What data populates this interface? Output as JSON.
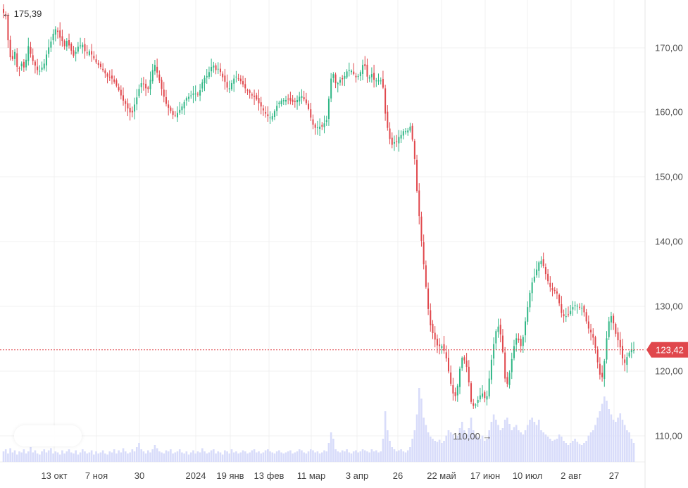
{
  "chart_data": {
    "type": "candlestick",
    "title": "",
    "x_ticks": [
      "13 окт",
      "7 ноя",
      "30",
      "2024",
      "19 янв",
      "13 фев",
      "11 мар",
      "3 апр",
      "26",
      "22 май",
      "17 июн",
      "10 июл",
      "2 авг",
      "27"
    ],
    "y_ticks": [
      "170,00",
      "160,00",
      "150,00",
      "140,00",
      "130,00",
      "120,00",
      "110,00"
    ],
    "ylim": [
      107.4,
      177.3
    ],
    "grid": true,
    "legend": "none",
    "current_price": {
      "value": 123.42,
      "label": "123,42"
    },
    "max_marker": {
      "value": 175.39,
      "label": "← 175,39"
    },
    "min_marker": {
      "value": 110.0,
      "label": "110,00 →"
    },
    "colors": {
      "up": "#2fb685",
      "down": "#e0474c",
      "volume": "#d8dcfa",
      "grid": "#f0f0f0",
      "current": "#e0474c"
    },
    "closes": [
      175.3,
      175.0,
      171.1,
      168.5,
      168.2,
      169.3,
      167.0,
      166.8,
      167.5,
      166.9,
      168.1,
      170.2,
      169.0,
      167.9,
      167.2,
      166.5,
      166.4,
      166.9,
      167.5,
      168.9,
      170.0,
      170.9,
      172.1,
      172.8,
      172.4,
      171.5,
      171.0,
      170.2,
      171.0,
      170.3,
      169.5,
      168.7,
      169.3,
      170.1,
      170.3,
      170.4,
      169.4,
      169.1,
      169.4,
      168.9,
      168.3,
      167.7,
      167.3,
      167.0,
      166.5,
      166.0,
      165.5,
      165.4,
      165.2,
      164.7,
      164.1,
      163.4,
      162.6,
      161.8,
      161.3,
      160.6,
      160.0,
      160.0,
      161.2,
      162.3,
      163.6,
      164.5,
      164.4,
      163.7,
      163.6,
      165.0,
      166.5,
      167.3,
      166.1,
      164.9,
      163.6,
      162.4,
      161.3,
      160.7,
      160.2,
      159.6,
      159.5,
      159.9,
      160.4,
      160.9,
      161.6,
      162.2,
      162.4,
      162.6,
      162.9,
      162.9,
      162.8,
      163.4,
      164.6,
      165.3,
      165.6,
      166.2,
      167.0,
      167.2,
      166.5,
      166.7,
      166.2,
      165.4,
      164.7,
      163.8,
      163.7,
      164.5,
      165.2,
      165.5,
      165.2,
      164.8,
      164.3,
      163.7,
      163.4,
      163.0,
      162.6,
      162.4,
      162.0,
      161.4,
      160.9,
      160.3,
      159.8,
      159.4,
      159.2,
      159.4,
      160.2,
      161.0,
      161.5,
      161.8,
      161.9,
      161.9,
      162.0,
      161.8,
      161.6,
      161.6,
      161.9,
      162.4,
      162.5,
      162.0,
      161.4,
      160.5,
      159.2,
      158.1,
      157.6,
      157.7,
      157.8,
      157.8,
      158.3,
      158.8,
      162.1,
      165.2,
      165.9,
      164.5,
      164.5,
      165.0,
      165.1,
      165.6,
      166.3,
      166.5,
      166.4,
      165.9,
      165.4,
      165.6,
      166.2,
      167.3,
      167.1,
      165.5,
      165.4,
      165.9,
      165.0,
      164.9,
      164.9,
      164.9,
      163.8,
      159.8,
      157.6,
      155.9,
      155.0,
      155.4,
      155.5,
      156.2,
      156.5,
      157.1,
      157.1,
      157.2,
      157.8,
      155.8,
      152.8,
      147.9,
      144.0,
      140.2,
      136.6,
      133.1,
      129.7,
      127.2,
      126.0,
      125.0,
      124.1,
      124.0,
      124.0,
      123.3,
      122.1,
      120.1,
      118.2,
      116.7,
      116.3,
      117.9,
      120.5,
      122.2,
      121.8,
      120.8,
      118.4,
      115.4,
      114.8,
      115.0,
      115.7,
      116.4,
      116.7,
      116.0,
      116.3,
      119.0,
      121.9,
      124.3,
      126.3,
      127.0,
      125.8,
      123.1,
      119.0,
      118.2,
      119.9,
      122.0,
      124.0,
      125.2,
      124.9,
      124.0,
      125.4,
      127.8,
      130.0,
      132.2,
      133.8,
      134.7,
      135.8,
      136.9,
      137.1,
      136.3,
      135.1,
      134.0,
      133.1,
      132.6,
      132.5,
      132.1,
      130.6,
      129.1,
      128.6,
      128.6,
      128.8,
      129.4,
      130.0,
      130.3,
      130.2,
      130.0,
      129.9,
      129.2,
      127.8,
      126.7,
      126.1,
      125.3,
      123.7,
      121.5,
      119.6,
      119.2,
      121.7,
      125.2,
      127.8,
      128.6,
      127.5,
      125.9,
      124.9,
      123.8,
      122.1,
      121.4,
      122.3,
      123.0,
      123.5,
      123.4
    ],
    "volume": [
      0.1,
      0.12,
      0.08,
      0.13,
      0.09,
      0.11,
      0.07,
      0.1,
      0.09,
      0.12,
      0.08,
      0.1,
      0.14,
      0.09,
      0.11,
      0.08,
      0.07,
      0.1,
      0.12,
      0.09,
      0.11,
      0.13,
      0.08,
      0.1,
      0.09,
      0.07,
      0.11,
      0.08,
      0.1,
      0.12,
      0.09,
      0.08,
      0.11,
      0.07,
      0.09,
      0.12,
      0.1,
      0.08,
      0.09,
      0.11,
      0.07,
      0.1,
      0.08,
      0.09,
      0.11,
      0.08,
      0.07,
      0.1,
      0.09,
      0.12,
      0.08,
      0.11,
      0.09,
      0.13,
      0.1,
      0.08,
      0.09,
      0.12,
      0.1,
      0.14,
      0.18,
      0.12,
      0.1,
      0.08,
      0.11,
      0.09,
      0.12,
      0.16,
      0.13,
      0.1,
      0.09,
      0.08,
      0.11,
      0.1,
      0.12,
      0.08,
      0.09,
      0.1,
      0.12,
      0.09,
      0.08,
      0.1,
      0.07,
      0.09,
      0.11,
      0.08,
      0.1,
      0.09,
      0.13,
      0.1,
      0.08,
      0.09,
      0.11,
      0.12,
      0.08,
      0.1,
      0.09,
      0.07,
      0.11,
      0.1,
      0.08,
      0.12,
      0.09,
      0.1,
      0.08,
      0.09,
      0.11,
      0.1,
      0.08,
      0.09,
      0.11,
      0.12,
      0.09,
      0.1,
      0.08,
      0.09,
      0.11,
      0.12,
      0.1,
      0.09,
      0.08,
      0.1,
      0.11,
      0.09,
      0.08,
      0.09,
      0.1,
      0.11,
      0.08,
      0.09,
      0.1,
      0.12,
      0.11,
      0.09,
      0.08,
      0.1,
      0.12,
      0.11,
      0.09,
      0.1,
      0.08,
      0.09,
      0.11,
      0.1,
      0.18,
      0.28,
      0.22,
      0.12,
      0.1,
      0.09,
      0.11,
      0.1,
      0.12,
      0.09,
      0.08,
      0.1,
      0.11,
      0.09,
      0.1,
      0.12,
      0.11,
      0.1,
      0.09,
      0.12,
      0.1,
      0.11,
      0.09,
      0.1,
      0.22,
      0.48,
      0.3,
      0.2,
      0.14,
      0.12,
      0.1,
      0.11,
      0.12,
      0.1,
      0.09,
      0.11,
      0.14,
      0.22,
      0.3,
      0.45,
      0.7,
      0.6,
      0.42,
      0.35,
      0.28,
      0.24,
      0.22,
      0.2,
      0.19,
      0.21,
      0.18,
      0.2,
      0.25,
      0.3,
      0.28,
      0.26,
      0.22,
      0.25,
      0.32,
      0.38,
      0.3,
      0.26,
      0.32,
      0.42,
      0.3,
      0.26,
      0.24,
      0.22,
      0.25,
      0.2,
      0.22,
      0.3,
      0.38,
      0.45,
      0.4,
      0.35,
      0.3,
      0.32,
      0.4,
      0.42,
      0.36,
      0.3,
      0.33,
      0.35,
      0.3,
      0.28,
      0.26,
      0.3,
      0.35,
      0.4,
      0.42,
      0.38,
      0.35,
      0.4,
      0.3,
      0.28,
      0.26,
      0.24,
      0.22,
      0.2,
      0.21,
      0.22,
      0.26,
      0.24,
      0.2,
      0.18,
      0.16,
      0.18,
      0.2,
      0.22,
      0.19,
      0.17,
      0.16,
      0.18,
      0.2,
      0.25,
      0.28,
      0.3,
      0.35,
      0.42,
      0.48,
      0.55,
      0.62,
      0.58,
      0.5,
      0.45,
      0.4,
      0.38,
      0.42,
      0.46,
      0.4,
      0.35,
      0.3,
      0.28,
      0.22,
      0.18
    ]
  }
}
